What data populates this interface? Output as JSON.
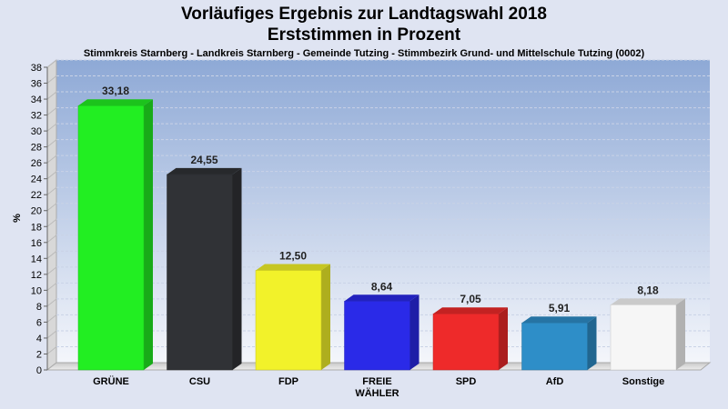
{
  "title_line1": "Vorläufiges Ergebnis zur Landtagswahl 2018",
  "title_line2": "Erststimmen in Prozent",
  "subtitle": "Stimmkreis Starnberg - Landkreis Starnberg - Gemeinde Tutzing - Stimmbezirk Grund- und Mittelschule Tutzing (0002)",
  "chart_data": {
    "type": "bar",
    "title": "Vorläufiges Ergebnis zur Landtagswahl 2018 Erststimmen in Prozent",
    "subtitle": "Stimmkreis Starnberg - Landkreis Starnberg - Gemeinde Tutzing - Stimmbezirk Grund- und Mittelschule Tutzing (0002)",
    "xlabel": "",
    "ylabel": "%",
    "ylim": [
      0,
      38
    ],
    "yticks": [
      0,
      2,
      4,
      6,
      8,
      10,
      12,
      14,
      16,
      18,
      20,
      22,
      24,
      26,
      28,
      30,
      32,
      34,
      36,
      38
    ],
    "grid": true,
    "categories": [
      {
        "label": [
          "GRÜNE"
        ],
        "value": 33.18,
        "value_label": "33,18",
        "color": "#22ee22"
      },
      {
        "label": [
          "CSU"
        ],
        "value": 24.55,
        "value_label": "24,55",
        "color": "#303236"
      },
      {
        "label": [
          "FDP"
        ],
        "value": 12.5,
        "value_label": "12,50",
        "color": "#f2f22a"
      },
      {
        "label": [
          "FREIE",
          "WÄHLER"
        ],
        "value": 8.64,
        "value_label": "8,64",
        "color": "#2a2ae8"
      },
      {
        "label": [
          "SPD"
        ],
        "value": 7.05,
        "value_label": "7,05",
        "color": "#ee2a2a"
      },
      {
        "label": [
          "AfD"
        ],
        "value": 5.91,
        "value_label": "5,91",
        "color": "#2e8ec8"
      },
      {
        "label": [
          "Sonstige"
        ],
        "value": 8.18,
        "value_label": "8,18",
        "color": "#f6f6f6"
      }
    ]
  }
}
